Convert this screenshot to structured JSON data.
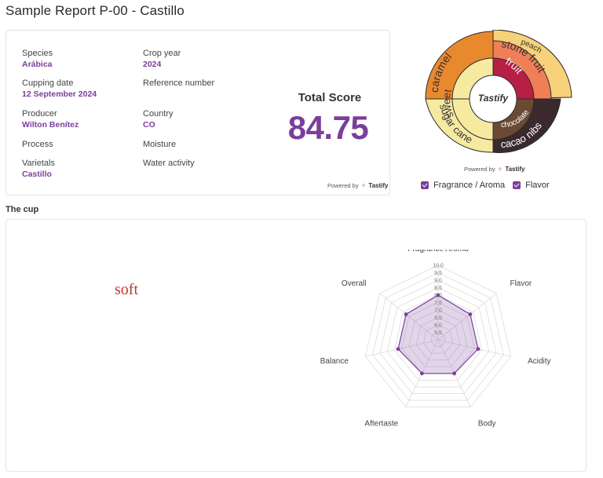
{
  "page_title": "Sample Report P-00 - Castillo",
  "info": {
    "species_label": "Species",
    "species_value": "Arábica",
    "crop_year_label": "Crop year",
    "crop_year_value": "2024",
    "cupping_date_label": "Cupping date",
    "cupping_date_value": "12 September 2024",
    "reference_label": "Reference number",
    "producer_label": "Producer",
    "producer_value": "Wilton Benítez",
    "country_label": "Country",
    "country_value": "CO",
    "process_label": "Process",
    "moisture_label": "Moisture",
    "varietals_label": "Varietals",
    "varietals_value": "Castillo",
    "water_activity_label": "Water activity"
  },
  "score": {
    "label": "Total Score",
    "value": "84.75"
  },
  "powered_by": {
    "text": "Powered by",
    "brand": "Tastify"
  },
  "flavor_wheel": {
    "center_label": "Tastify",
    "outer_segments": [
      "caramel",
      "peach",
      "sugar cane",
      "cacao nibs"
    ],
    "inner_segments": [
      "sweet",
      "stone fruit",
      "fruit",
      "chocolate"
    ],
    "colors": {
      "caramel": "#e9892e",
      "sweet": "#f6eaa1",
      "stone_fruit": "#f07f57",
      "peach": "#f7d27a",
      "fruit": "#b81f45",
      "chocolate": "#6b4a34",
      "cacao_nibs": "#3a2a2e"
    }
  },
  "legend": {
    "fragrance_aroma": "Fragrance / Aroma",
    "flavor": "Flavor"
  },
  "cup_section": {
    "title": "The cup",
    "note": "soft"
  },
  "radar": {
    "axes": [
      "Fragrance Aroma",
      "Flavor",
      "Acidity",
      "Body",
      "Aftertaste",
      "Balance",
      "Overall"
    ],
    "values": [
      8.0,
      7.75,
      7.75,
      7.5,
      7.5,
      7.75,
      7.75
    ],
    "scale_labels": [
      "10,0",
      "9,5",
      "9,0",
      "8,5",
      "8,0",
      "7,5",
      "7,0",
      "6,5",
      "6,0",
      "5,5"
    ],
    "range": [
      5.0,
      10.0
    ],
    "fill_color": "#7b3e9b"
  }
}
